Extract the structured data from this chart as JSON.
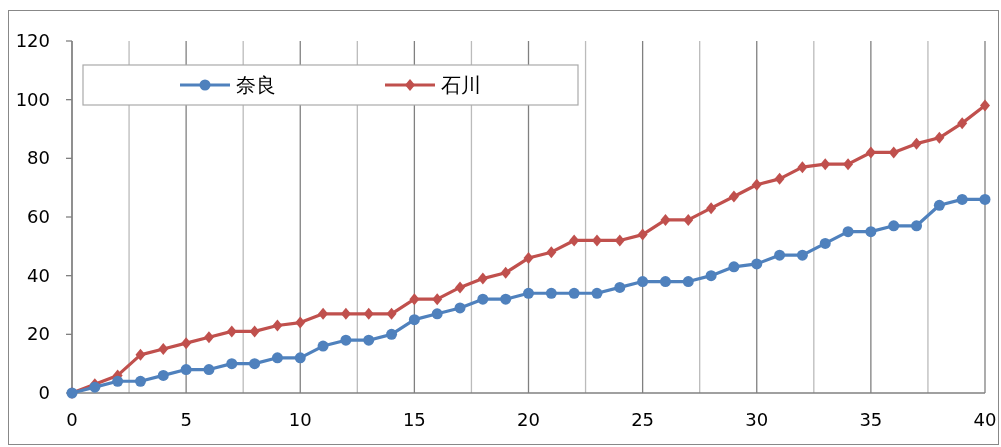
{
  "chart_data": {
    "type": "line",
    "x": [
      0,
      1,
      2,
      3,
      4,
      5,
      6,
      7,
      8,
      9,
      10,
      11,
      12,
      13,
      14,
      15,
      16,
      17,
      18,
      19,
      20,
      21,
      22,
      23,
      24,
      25,
      26,
      27,
      28,
      29,
      30,
      31,
      32,
      33,
      34,
      35,
      36,
      37,
      38,
      39,
      40
    ],
    "series": [
      {
        "name": "奈良",
        "color": "#4f81bd",
        "marker": "circle",
        "values": [
          0,
          2,
          4,
          4,
          6,
          8,
          8,
          10,
          10,
          12,
          12,
          16,
          18,
          18,
          20,
          25,
          27,
          29,
          32,
          32,
          34,
          34,
          34,
          34,
          36,
          38,
          38,
          38,
          40,
          43,
          44,
          47,
          47,
          51,
          55,
          55,
          57,
          57,
          64,
          66,
          66
        ]
      },
      {
        "name": "石川",
        "color": "#c0504d",
        "marker": "diamond",
        "values": [
          0,
          3,
          6,
          13,
          15,
          17,
          19,
          21,
          21,
          23,
          24,
          27,
          27,
          27,
          27,
          32,
          32,
          36,
          39,
          41,
          46,
          48,
          52,
          52,
          52,
          54,
          59,
          59,
          63,
          67,
          71,
          73,
          77,
          78,
          78,
          82,
          82,
          85,
          87,
          92,
          98
        ]
      }
    ],
    "xlim": [
      0,
      40
    ],
    "xticks": [
      0,
      {
        "value": 2.5,
        "label": null
      },
      5,
      {
        "value": 7.5,
        "label": null
      },
      10,
      {
        "value": 12.5,
        "label": null
      },
      15,
      {
        "value": 17.5,
        "label": null
      },
      20,
      {
        "value": 22.5,
        "label": null
      },
      25,
      {
        "value": 27.5,
        "label": null
      },
      30,
      {
        "value": 32.5,
        "label": null
      },
      35,
      {
        "value": 37.5,
        "label": null
      },
      40
    ],
    "ylim": [
      0,
      120
    ],
    "yticks": [
      0,
      20,
      40,
      60,
      80,
      100,
      120
    ],
    "grid": "x",
    "legend": "top left",
    "line_style": "solid"
  }
}
